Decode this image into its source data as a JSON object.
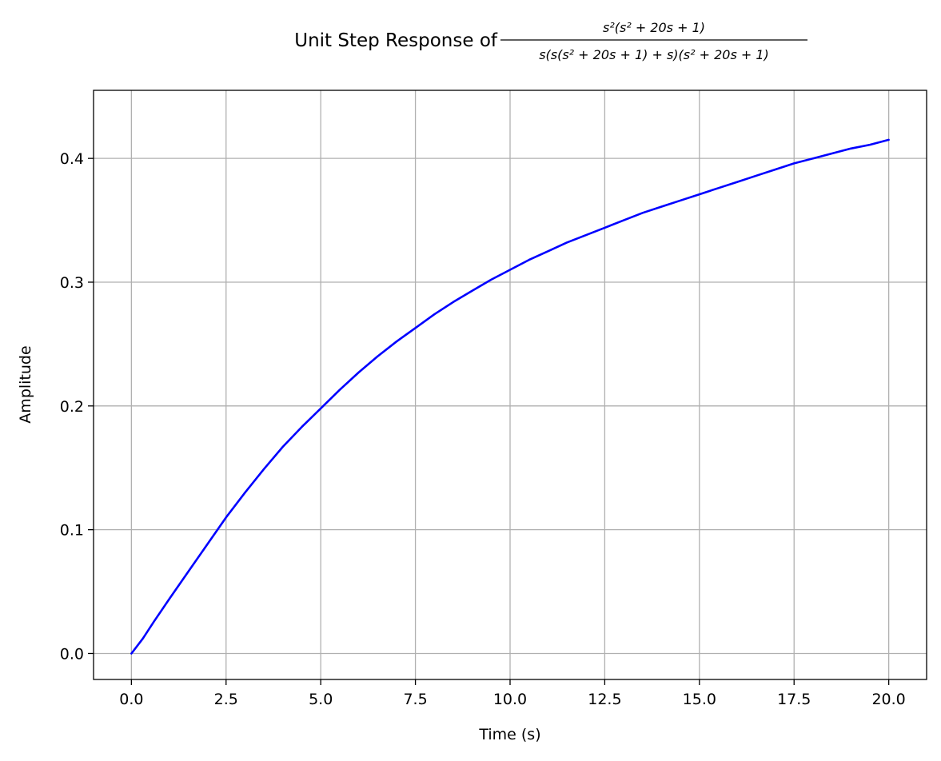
{
  "chart_data": {
    "type": "line",
    "title_prefix": "Unit Step Response of",
    "title_numerator": "s²(s² + 20s + 1)",
    "title_denominator": "s(s(s² + 20s + 1) + s)(s² + 20s + 1)",
    "xlabel": "Time (s)",
    "ylabel": "Amplitude",
    "xlim": [
      -1.0,
      21.0
    ],
    "ylim": [
      -0.021,
      0.455
    ],
    "x_ticks": [
      0.0,
      2.5,
      5.0,
      7.5,
      10.0,
      12.5,
      15.0,
      17.5,
      20.0
    ],
    "x_tick_labels": [
      "0.0",
      "2.5",
      "5.0",
      "7.5",
      "10.0",
      "12.5",
      "15.0",
      "17.5",
      "20.0"
    ],
    "y_ticks": [
      0.0,
      0.1,
      0.2,
      0.3,
      0.4
    ],
    "y_tick_labels": [
      "0.0",
      "0.1",
      "0.2",
      "0.3",
      "0.4"
    ],
    "grid": true,
    "legend": "none",
    "series": [
      {
        "color": "#0000ff",
        "x": [
          0,
          0.3,
          0.6,
          1,
          1.5,
          2,
          2.5,
          3,
          3.5,
          4,
          4.5,
          5,
          5.5,
          6,
          6.5,
          7,
          7.5,
          8,
          8.5,
          9,
          9.5,
          10,
          10.5,
          11,
          11.5,
          12,
          12.5,
          13,
          13.5,
          14,
          14.5,
          15,
          15.5,
          16,
          16.5,
          17,
          17.5,
          18,
          18.5,
          19,
          19.5,
          20
        ],
        "y": [
          0,
          0.012,
          0.026,
          0.044,
          0.066,
          0.088,
          0.11,
          0.13,
          0.149,
          0.167,
          0.183,
          0.198,
          0.213,
          0.227,
          0.24,
          0.252,
          0.263,
          0.274,
          0.284,
          0.293,
          0.302,
          0.31,
          0.318,
          0.325,
          0.332,
          0.338,
          0.344,
          0.35,
          0.356,
          0.361,
          0.366,
          0.371,
          0.376,
          0.381,
          0.386,
          0.391,
          0.396,
          0.4,
          0.404,
          0.408,
          0.411,
          0.415
        ]
      }
    ]
  }
}
